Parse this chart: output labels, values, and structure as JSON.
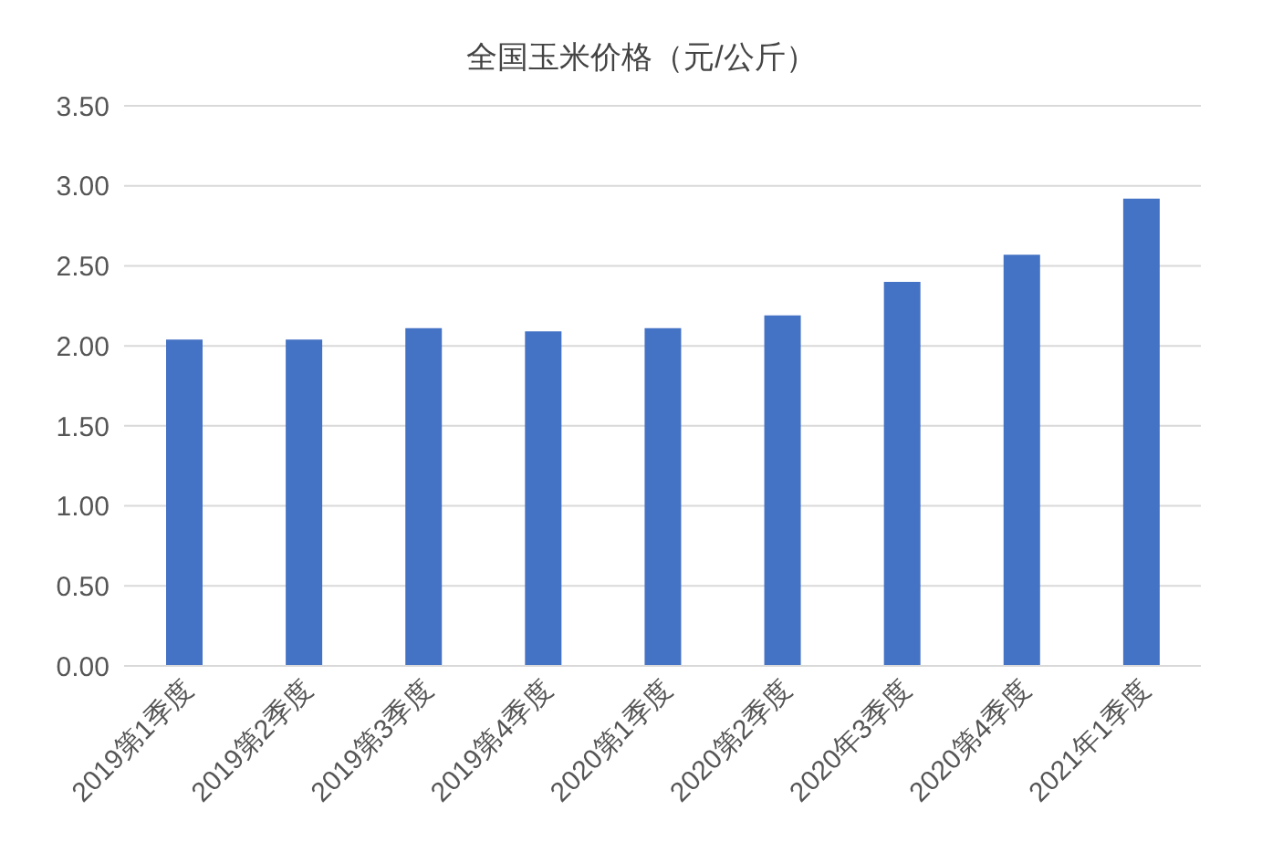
{
  "chart_data": {
    "type": "bar",
    "title": "全国玉米价格（元/公斤）",
    "categories": [
      "2019第1季度",
      "2019第2季度",
      "2019第3季度",
      "2019第4季度",
      "2020第1季度",
      "2020第2季度",
      "2020年3季度",
      "2020第4季度",
      "2021年1季度"
    ],
    "values": [
      2.04,
      2.04,
      2.11,
      2.09,
      2.11,
      2.19,
      2.4,
      2.57,
      2.92
    ],
    "color": "#4472c4",
    "ylim": [
      0,
      3.5
    ],
    "yticks": [
      {
        "value": 0,
        "label": "0.00"
      },
      {
        "value": 0.5,
        "label": "0.50"
      },
      {
        "value": 1,
        "label": "1.00"
      },
      {
        "value": 1.5,
        "label": "1.50"
      },
      {
        "value": 2,
        "label": "2.00"
      },
      {
        "value": 2.5,
        "label": "2.50"
      },
      {
        "value": 3,
        "label": "3.00"
      },
      {
        "value": 3.5,
        "label": "3.50"
      }
    ],
    "grid": "y"
  }
}
